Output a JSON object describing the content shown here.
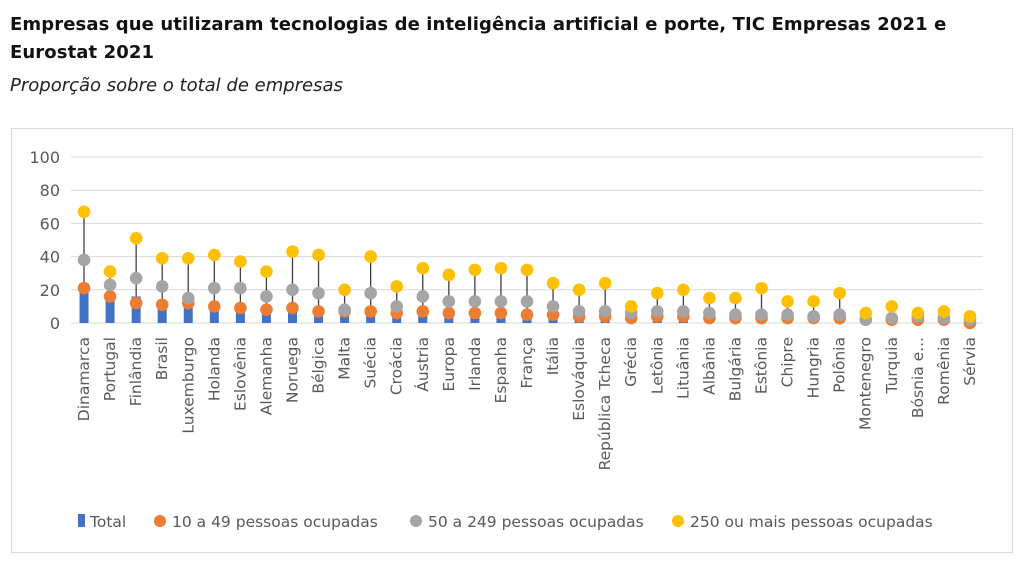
{
  "page": {
    "title": "Empresas que utilizaram tecnologias de inteligência artificial e porte, TIC Empresas 2021 e Eurostat 2021",
    "subtitle": "Proporção sobre o total de empresas"
  },
  "colors": {
    "total": "#4472C4",
    "small": "#ED7D31",
    "medium": "#A5A5A5",
    "large": "#FFC000",
    "stem": "#404040",
    "grid": "#d9d9d9",
    "text": "#595959"
  },
  "chart_data": {
    "type": "bar",
    "title": "Empresas que utilizaram tecnologias de inteligência artificial e porte, TIC Empresas 2021 e Eurostat 2021",
    "subtitle": "Proporção sobre o total de empresas",
    "xlabel": "",
    "ylabel": "",
    "ylim": [
      0,
      100
    ],
    "yticks": [
      0,
      20,
      40,
      60,
      80,
      100
    ],
    "grid": true,
    "legend_position": "bottom",
    "categories": [
      "Dinamarca",
      "Portugal",
      "Finlândia",
      "Brasil",
      "Luxemburgo",
      "Holanda",
      "Eslovênia",
      "Alemanha",
      "Noruega",
      "Bélgica",
      "Malta",
      "Suécia",
      "Croácia",
      "Áustria",
      "Europa",
      "Irlanda",
      "Espanha",
      "França",
      "Itália",
      "Eslováquia",
      "República Tcheca",
      "Grécia",
      "Letônia",
      "Lituânia",
      "Albânia",
      "Bulgária",
      "Estônia",
      "Chipre",
      "Hungria",
      "Polônia",
      "Montenegro",
      "Turquia",
      "Bósnia e...",
      "Romênia",
      "Sérvia"
    ],
    "series": [
      {
        "name": "Total",
        "kind": "bar",
        "values": [
          24,
          17,
          16,
          13,
          13,
          11,
          11,
          10,
          9,
          9,
          8,
          8,
          8,
          8,
          8,
          8,
          8,
          7,
          6,
          6,
          6,
          5,
          5,
          5,
          5,
          4,
          3,
          3,
          3,
          3,
          2,
          2,
          2,
          2,
          1
        ]
      },
      {
        "name": "10 a 49 pessoas ocupadas",
        "kind": "dot",
        "values": [
          21,
          16,
          12,
          11,
          12,
          10,
          9,
          8,
          9,
          7,
          7,
          7,
          6,
          7,
          6,
          6,
          6,
          5,
          5,
          4,
          4,
          3,
          4,
          4,
          3,
          3,
          3,
          3,
          3,
          3,
          2,
          2,
          2,
          2,
          0
        ]
      },
      {
        "name": "50 a 249 pessoas ocupadas",
        "kind": "dot",
        "values": [
          38,
          23,
          27,
          22,
          15,
          21,
          21,
          16,
          20,
          18,
          8,
          18,
          10,
          16,
          13,
          13,
          13,
          13,
          10,
          7,
          7,
          6,
          7,
          7,
          6,
          5,
          5,
          5,
          4,
          5,
          2,
          3,
          4,
          3,
          2
        ]
      },
      {
        "name": "250 ou mais pessoas ocupadas",
        "kind": "dot",
        "values": [
          67,
          31,
          51,
          39,
          39,
          41,
          37,
          31,
          43,
          41,
          20,
          40,
          22,
          33,
          29,
          32,
          33,
          32,
          24,
          20,
          24,
          10,
          18,
          20,
          15,
          15,
          21,
          13,
          13,
          18,
          6,
          10,
          6,
          7,
          4
        ]
      }
    ]
  }
}
